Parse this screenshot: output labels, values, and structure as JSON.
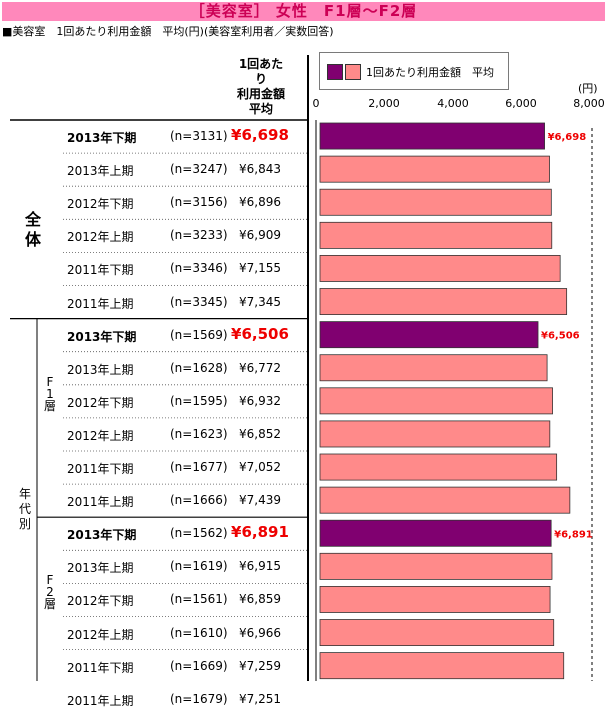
{
  "title": "［美容室］ 女性　F1層～F2層",
  "subtitle": "■美容室　1回あたり利用金額　平均(円)(美容室利用者／実数回答)",
  "column_header": [
    "1回あたり",
    "利用金額",
    "平均"
  ],
  "unit": "(円)",
  "colors": {
    "highlight": "#800070",
    "normal": "#ff8a8a",
    "highlight_text": "#ee0000"
  },
  "groups": {
    "all": "全体",
    "age": "年代別",
    "f1": "F1層",
    "f2": "F2層"
  },
  "chart_data": {
    "type": "bar",
    "title": "［美容室］ 女性　F1層～F2層",
    "orientation": "horizontal",
    "xlim": [
      0,
      8000
    ],
    "xticks": [
      "0",
      "2,000",
      "4,000",
      "6,000",
      "8,000"
    ],
    "legend": {
      "label": "1回あたり利用金額　平均",
      "placement": "top"
    },
    "rows": [
      {
        "group": "全体",
        "period": "2013年下期",
        "n": "(n=3131)",
        "value": 6698,
        "label": "¥6,698",
        "highlight": true
      },
      {
        "group": "全体",
        "period": "2013年上期",
        "n": "(n=3247)",
        "value": 6843,
        "label": "¥6,843",
        "highlight": false
      },
      {
        "group": "全体",
        "period": "2012年下期",
        "n": "(n=3156)",
        "value": 6896,
        "label": "¥6,896",
        "highlight": false
      },
      {
        "group": "全体",
        "period": "2012年上期",
        "n": "(n=3233)",
        "value": 6909,
        "label": "¥6,909",
        "highlight": false
      },
      {
        "group": "全体",
        "period": "2011年下期",
        "n": "(n=3346)",
        "value": 7155,
        "label": "¥7,155",
        "highlight": false
      },
      {
        "group": "全体",
        "period": "2011年上期",
        "n": "(n=3345)",
        "value": 7345,
        "label": "¥7,345",
        "highlight": false
      },
      {
        "group": "F1層",
        "period": "2013年下期",
        "n": "(n=1569)",
        "value": 6506,
        "label": "¥6,506",
        "highlight": true
      },
      {
        "group": "F1層",
        "period": "2013年上期",
        "n": "(n=1628)",
        "value": 6772,
        "label": "¥6,772",
        "highlight": false
      },
      {
        "group": "F1層",
        "period": "2012年下期",
        "n": "(n=1595)",
        "value": 6932,
        "label": "¥6,932",
        "highlight": false
      },
      {
        "group": "F1層",
        "period": "2012年上期",
        "n": "(n=1623)",
        "value": 6852,
        "label": "¥6,852",
        "highlight": false
      },
      {
        "group": "F1層",
        "period": "2011年下期",
        "n": "(n=1677)",
        "value": 7052,
        "label": "¥7,052",
        "highlight": false
      },
      {
        "group": "F1層",
        "period": "2011年上期",
        "n": "(n=1666)",
        "value": 7439,
        "label": "¥7,439",
        "highlight": false
      },
      {
        "group": "F2層",
        "period": "2013年下期",
        "n": "(n=1562)",
        "value": 6891,
        "label": "¥6,891",
        "highlight": true
      },
      {
        "group": "F2層",
        "period": "2013年上期",
        "n": "(n=1619)",
        "value": 6915,
        "label": "¥6,915",
        "highlight": false
      },
      {
        "group": "F2層",
        "period": "2012年下期",
        "n": "(n=1561)",
        "value": 6859,
        "label": "¥6,859",
        "highlight": false
      },
      {
        "group": "F2層",
        "period": "2012年上期",
        "n": "(n=1610)",
        "value": 6966,
        "label": "¥6,966",
        "highlight": false
      },
      {
        "group": "F2層",
        "period": "2011年下期",
        "n": "(n=1669)",
        "value": 7259,
        "label": "¥7,259",
        "highlight": false
      },
      {
        "group": "F2層",
        "period": "2011年上期",
        "n": "(n=1679)",
        "value": 7251,
        "label": "¥7,251",
        "highlight": false
      }
    ]
  }
}
